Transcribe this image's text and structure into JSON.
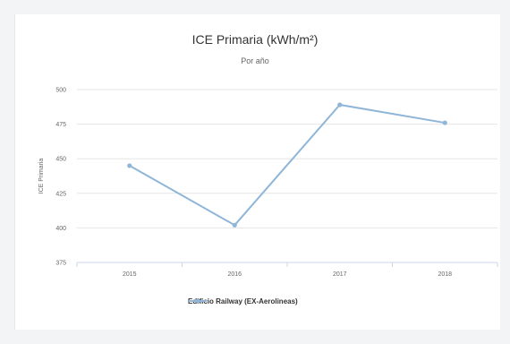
{
  "chart_data": {
    "type": "line",
    "title": "ICE Primaria (kWh/m²)",
    "subtitle": "Por año",
    "xlabel": "",
    "ylabel": "ICE Primaria",
    "categories": [
      "2015",
      "2016",
      "2017",
      "2018"
    ],
    "series": [
      {
        "name": "Edificio Railway (EX-Aerolineas)",
        "values": [
          445,
          402,
          489,
          476
        ],
        "color": "#8fb6d8"
      }
    ],
    "yticks": [
      375,
      400,
      425,
      450,
      475,
      500
    ],
    "ylim": [
      375,
      500
    ],
    "grid": true,
    "legend": "bottom"
  }
}
